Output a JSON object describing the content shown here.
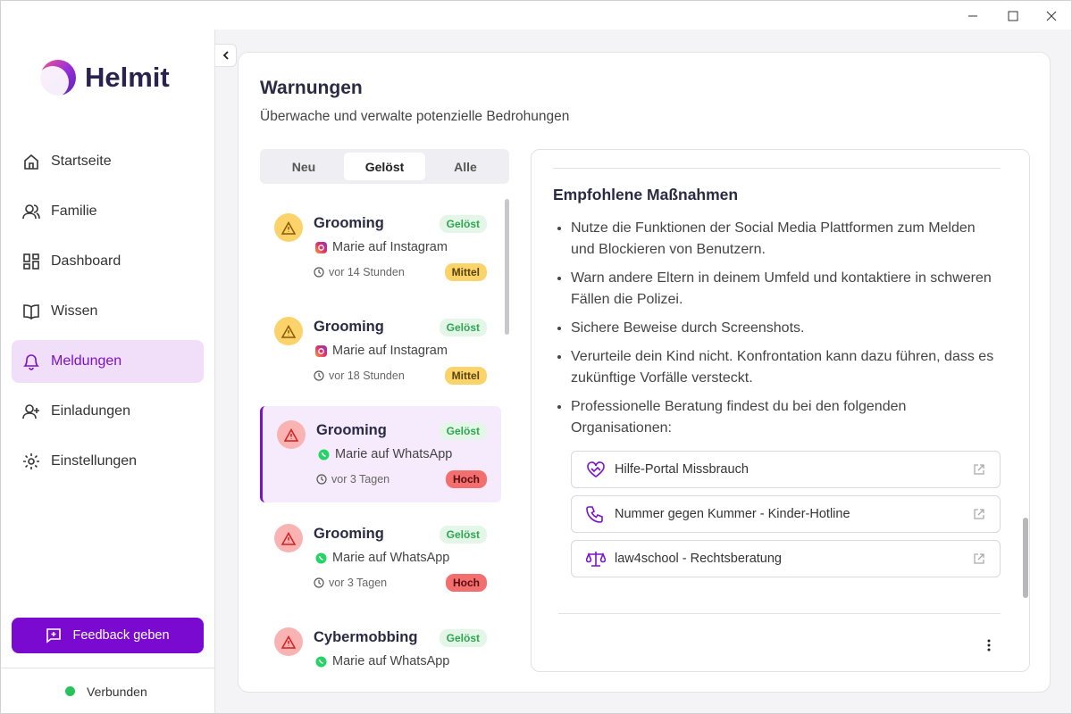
{
  "sidebar": {
    "brand": "Helmit",
    "nav": [
      "Startseite",
      "Familie",
      "Dashboard",
      "Wissen",
      "Meldungen",
      "Einladungen",
      "Einstellungen"
    ],
    "feedback_button": "Feedback geben",
    "status": "Verbunden"
  },
  "page": {
    "title": "Warnungen",
    "subtitle": "Überwache und verwalte potenzielle Bedrohungen"
  },
  "tabs": [
    "Neu",
    "Gelöst",
    "Alle"
  ],
  "alerts": [
    {
      "title": "Grooming",
      "status": "Gelöst",
      "source": "Marie auf Instagram",
      "time": "vor 14 Stunden",
      "severity": "Mittel"
    },
    {
      "title": "Grooming",
      "status": "Gelöst",
      "source": "Marie auf Instagram",
      "time": "vor 18 Stunden",
      "severity": "Mittel"
    },
    {
      "title": "Grooming",
      "status": "Gelöst",
      "source": "Marie auf WhatsApp",
      "time": "vor 3 Tagen",
      "severity": "Hoch"
    },
    {
      "title": "Grooming",
      "status": "Gelöst",
      "source": "Marie auf WhatsApp",
      "time": "vor 3 Tagen",
      "severity": "Hoch"
    },
    {
      "title": "Cybermobbing",
      "status": "Gelöst",
      "source": "Marie auf WhatsApp"
    }
  ],
  "details": {
    "heading": "Empfohlene Maßnahmen",
    "items": [
      "Nutze die Funktionen der Social Media Plattformen zum Melden und Blockieren von Benutzern.",
      "Warn andere Eltern in deinem Umfeld und kontaktiere in schweren Fällen die Polizei.",
      "Sichere Beweise durch Screenshots.",
      "Verurteile dein Kind nicht. Konfrontation kann dazu führen, dass es zukünftige Vorfälle versteckt.",
      "Professionelle Beratung findest du bei den folgenden Organisationen:"
    ],
    "links": [
      "Hilfe-Portal Missbrauch",
      "Nummer gegen Kummer - Kinder-Hotline",
      "law4school - Rechtsberatung"
    ]
  }
}
